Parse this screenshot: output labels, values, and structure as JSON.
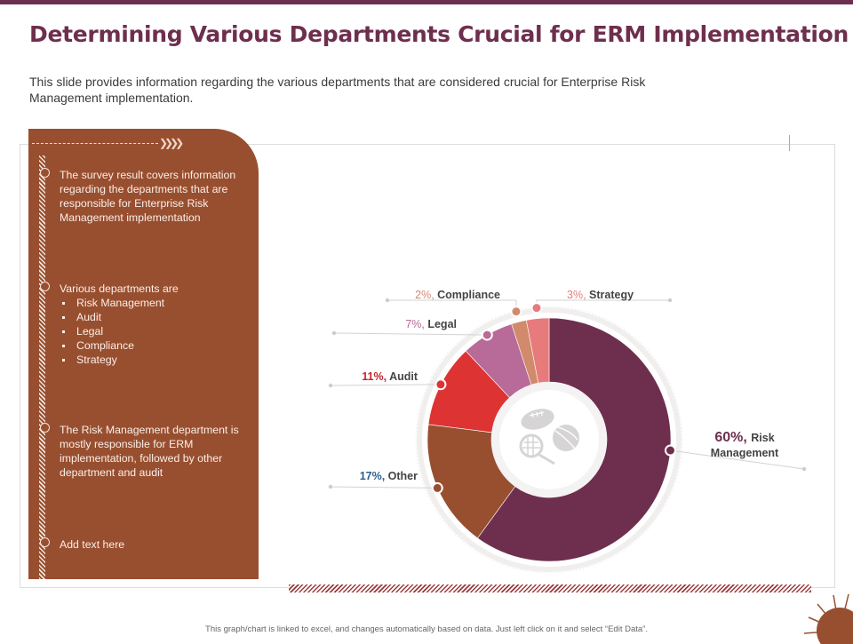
{
  "header": {
    "title": "Determining Various Departments Crucial for ERM Implementation",
    "subtitle": "This slide provides information regarding the various departments that are considered crucial for Enterprise Risk Management implementation."
  },
  "panel": {
    "items": [
      {
        "text": "The survey result covers information regarding the departments that are responsible for Enterprise Risk Management implementation"
      },
      {
        "text": "Various departments are",
        "bullets": [
          "Risk Management",
          "Audit",
          "Legal",
          "Compliance",
          "Strategy"
        ]
      },
      {
        "text": "The Risk Management department is mostly responsible for ERM implementation, followed by other department and audit"
      },
      {
        "text": "Add text here"
      }
    ]
  },
  "footer": {
    "note": "This graph/chart is linked to excel, and changes automatically based on data. Just left click on it and select “Edit Data”."
  },
  "chart_data": {
    "type": "pie",
    "donut": true,
    "center_icon": "sports-balls-icon",
    "categories": [
      "Risk Management",
      "Other",
      "Audit",
      "Legal",
      "Compliance",
      "Strategy"
    ],
    "values": [
      60,
      17,
      11,
      7,
      2,
      3
    ],
    "value_labels": [
      "60%,",
      "17%,",
      "11%,",
      "7%,",
      "2%,",
      "3%,"
    ],
    "colors": [
      "#6e2f4f",
      "#984f30",
      "#dd3333",
      "#b86a98",
      "#d18a6c",
      "#e77b7b"
    ],
    "label_colors": [
      "#6e2f4f",
      "#2e5f8a",
      "#c0282f",
      "#b86a98",
      "#d18a6c",
      "#e77b7b"
    ],
    "title": "",
    "legend": "none"
  }
}
